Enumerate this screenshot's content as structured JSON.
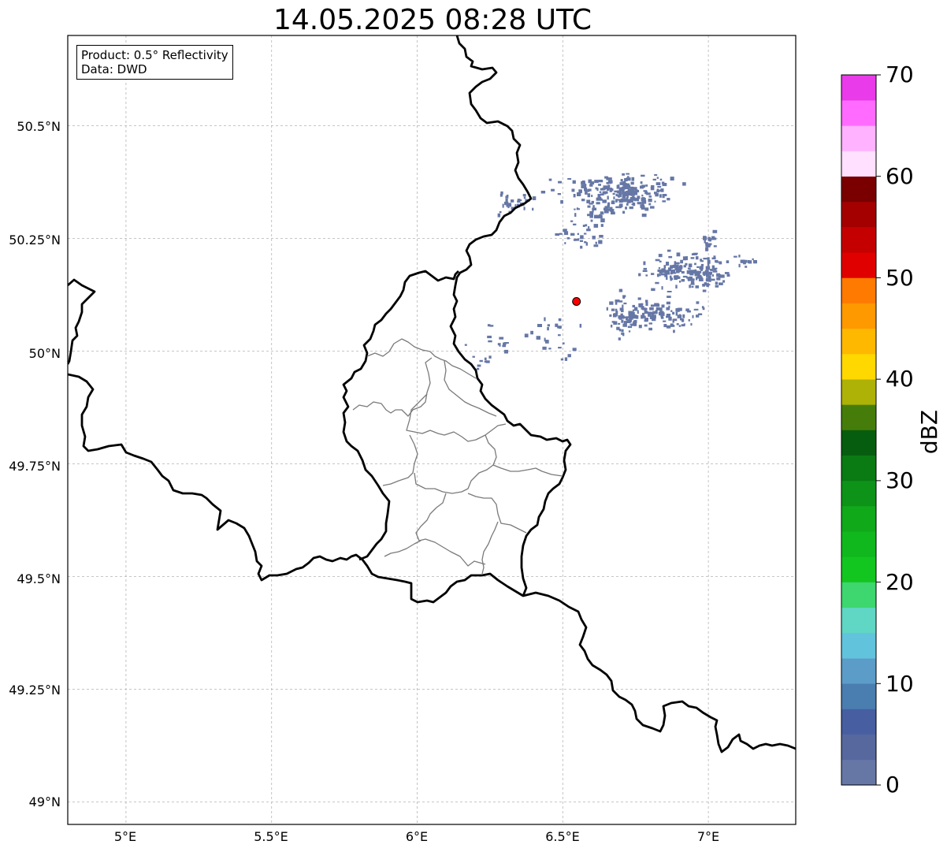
{
  "title": "14.05.2025 08:28 UTC",
  "info": {
    "product": "Product: 0.5° Reflectivity",
    "source": "Data: DWD"
  },
  "lat_labels": [
    "50.5°N",
    "50.25°N",
    "50°N",
    "49.75°N",
    "49.5°N",
    "49.25°N",
    "49°N"
  ],
  "lon_labels": [
    "5°E",
    "5.5°E",
    "6°E",
    "6.5°E",
    "7°E"
  ],
  "colorbar": {
    "label": "dBZ",
    "ticks": [
      "0",
      "10",
      "20",
      "30",
      "40",
      "50",
      "60",
      "70"
    ],
    "range": [
      0,
      70
    ],
    "colors": [
      "#6677a6",
      "#56689e",
      "#475ea1",
      "#4a7db0",
      "#5c9cc8",
      "#62c3dc",
      "#60d6c4",
      "#3dd66f",
      "#13c61f",
      "#10b81d",
      "#0fa91a",
      "#0d9317",
      "#0a7a13",
      "#075d0f",
      "#467d0a",
      "#aeb206",
      "#ffd800",
      "#ffb800",
      "#ff9900",
      "#ff7a00",
      "#e10000",
      "#c50000",
      "#a40000",
      "#7a0000",
      "#ffe0ff",
      "#ffb2ff",
      "#ff6bff",
      "#e93be9"
    ]
  },
  "map": {
    "extent": {
      "lon": [
        4.8,
        7.3
      ],
      "lat": [
        48.95,
        50.7
      ]
    },
    "radar_site": {
      "lon": 6.547,
      "lat": 50.11
    },
    "echo_color": "#6677a6"
  }
}
